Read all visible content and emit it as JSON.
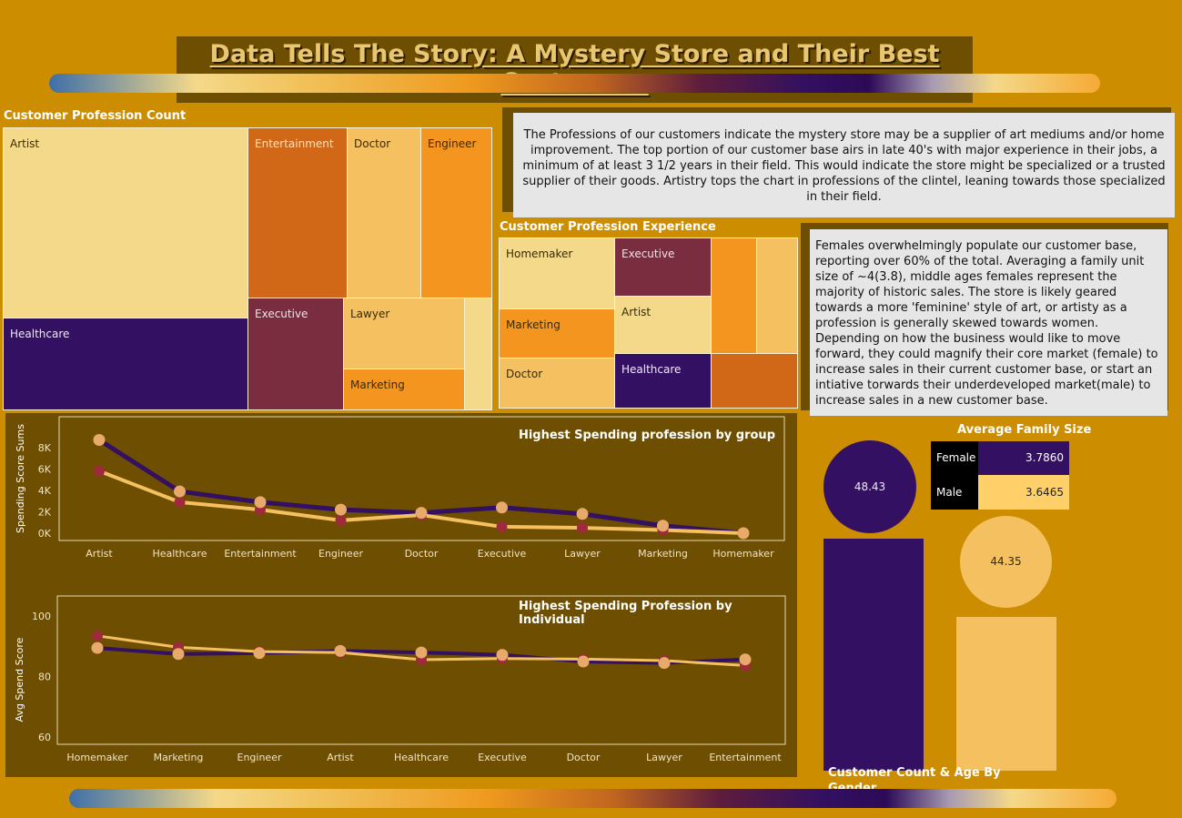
{
  "title": "Data Tells The Story: A Mystery Store and Their Best Customers",
  "treemap_count": {
    "title": "Customer Profession Count",
    "cells": [
      "Artist",
      "Healthcare",
      "Entertainment",
      "Doctor",
      "Engineer",
      "Executive",
      "Lawyer",
      "Marketing"
    ]
  },
  "text_professions": "The Professions of our customers indicate the mystery store may be a supplier of art mediums and/or home improvement. The top portion of our customer base airs in late 40's with major experience in their jobs, a minimum of at least 3 1/2 years in their field. This would indicate the store might be  specialized or a trusted supplier of their goods. Artistry tops the chart in professions of the clintel, leaning towards those specialized in their field.",
  "treemap_experience": {
    "title": "Customer Profession Experience",
    "cells": [
      "Homemaker",
      "Executive",
      "Artist",
      "Marketing",
      "Healthcare",
      "Doctor"
    ]
  },
  "text_gender": "Females overwhelmingly populate our customer base, reporting over 60% of the total. Averaging a family unit size of ~4(3.8), middle ages females represent the majority of historic sales. The store is likely geared towards a more 'feminine' style of art, or artisty as a profession is generally skewed towards women. Depending on how the business would like to move forward, they could magnify their core market (female) to increase sales in their current customer base, or start an intiative torwards their underdeveloped market(male) to increase sales in a new customer base.",
  "family_size": {
    "title": "Average Family Size",
    "rows": [
      {
        "label": "Female",
        "value": "3.7860"
      },
      {
        "label": "Male",
        "value": "3.6465"
      }
    ]
  },
  "gender_chart": {
    "title": "Customer Count & Age By Gender",
    "female_age": "48.43",
    "male_age": "44.35"
  },
  "colors": {
    "background": "#cc8e00",
    "panel": "#6e4e00",
    "purple": "#331061",
    "light_orange": "#f5c060",
    "maroon": "#9e2a3c",
    "peach": "#e8aa6a"
  },
  "chart_data": [
    {
      "type": "line",
      "title": "Highest Spending profession by  group",
      "ylabel": "Spending Score Sums",
      "categories": [
        "Artist",
        "Healthcare",
        "Entertainment",
        "Engineer",
        "Doctor",
        "Executive",
        "Lawyer",
        "Marketing",
        "Homemaker"
      ],
      "y_ticks": [
        "8K",
        "6K",
        "4K",
        "2K",
        "0K"
      ],
      "ylim": [
        0,
        9000
      ],
      "series": [
        {
          "values": [
            8700,
            3900,
            2900,
            2200,
            1900,
            2400,
            1800,
            700,
            0
          ]
        },
        {
          "values": [
            5800,
            2900,
            2200,
            1200,
            1700,
            600,
            500,
            300,
            0
          ]
        }
      ]
    },
    {
      "type": "line",
      "title": "Highest Spending Profession by Individual",
      "ylabel": "Avg Spend Score",
      "categories": [
        "Homemaker",
        "Marketing",
        "Engineer",
        "Artist",
        "Healthcare",
        "Executive",
        "Doctor",
        "Lawyer",
        "Entertainment"
      ],
      "y_ticks": [
        "100",
        "80",
        "60"
      ],
      "ylim": [
        60,
        107
      ],
      "series": [
        {
          "values": [
            89.5,
            87.5,
            87.8,
            88.5,
            88.0,
            87.2,
            85.0,
            84.5,
            85.7
          ]
        },
        {
          "values": [
            93.5,
            89.7,
            88.3,
            88.0,
            85.6,
            86.0,
            85.8,
            85.3,
            83.7
          ]
        }
      ]
    }
  ]
}
